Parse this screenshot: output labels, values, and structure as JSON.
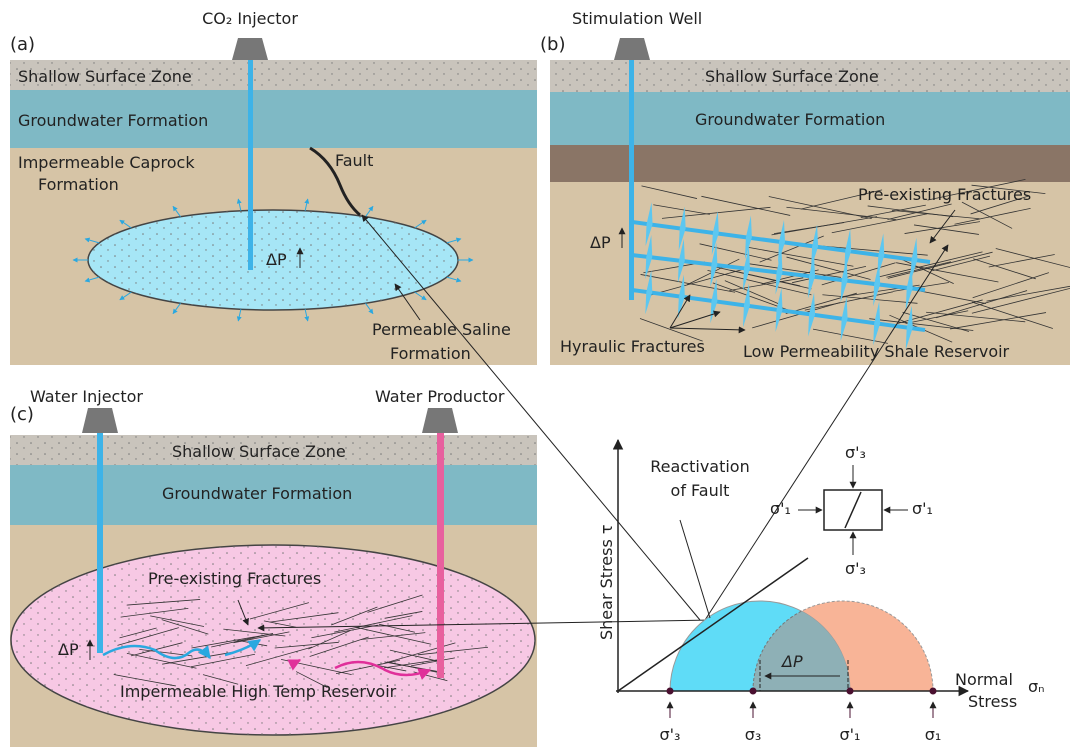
{
  "panel_a": {
    "label": "(a)",
    "well": "CO₂ Injector",
    "surface": "Shallow Surface Zone",
    "groundwater": "Groundwater Formation",
    "caprock": [
      "Impermeable Caprock",
      "Formation"
    ],
    "fault": "Fault",
    "delta_p": "ΔP",
    "reservoir": [
      "Permeable Saline",
      "Formation"
    ]
  },
  "panel_b": {
    "label": "(b)",
    "well": "Stimulation Well",
    "surface": "Shallow Surface Zone",
    "groundwater": "Groundwater Formation",
    "natural_fractures": "Pre-existing Fractures",
    "delta_p": "ΔP",
    "hydraulic_fractures": "Hyraulic Fractures",
    "reservoir": "Low Permeability Shale Reservoir"
  },
  "panel_c": {
    "label": "(c)",
    "injector": "Water Injector",
    "producer": "Water Productor",
    "surface": "Shallow Surface Zone",
    "groundwater": "Groundwater Formation",
    "fractures": "Pre-existing Fractures",
    "delta_p": "ΔP",
    "reservoir": "Impermeable High Temp Reservoir"
  },
  "mohr": {
    "y_label": "Shear Stress",
    "y_symbol": "τ",
    "x_label": [
      "Normal",
      "Stress"
    ],
    "x_symbol": "σₙ",
    "annotation": [
      "Reactivation",
      "of Fault"
    ],
    "delta_p": "ΔP",
    "element": {
      "top": "σ'₃",
      "left": "σ'₁",
      "right": "σ'₁",
      "bottom": "σ'₃"
    },
    "axis_points": [
      "σ'₃",
      "σ₃",
      "σ'₁",
      "σ₁"
    ]
  }
}
